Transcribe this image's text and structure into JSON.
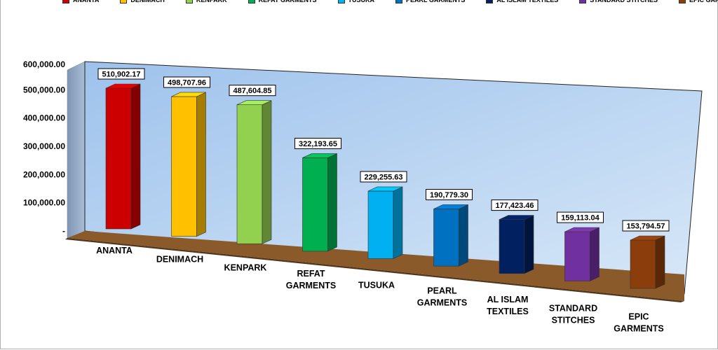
{
  "chart_data": {
    "type": "bar",
    "style": "3d-column",
    "categories": [
      "ANANTA",
      "DENIMACH",
      "KENPARK",
      "REFAT GARMENTS",
      "TUSUKA",
      "PEARL GARMENTS",
      "AL ISLAM TEXTILES",
      "STANDARD STITCHES",
      "EPIC GARMENTS"
    ],
    "values": [
      510902.17,
      498707.96,
      487604.85,
      322193.65,
      229255.63,
      190779.3,
      177423.46,
      159113.04,
      153794.57
    ],
    "value_labels": [
      "510,902.17",
      "498,707.96",
      "487,604.85",
      "322,193.65",
      "229,255.63",
      "190,779.30",
      "177,423.46",
      "159,113.04",
      "153,794.57"
    ],
    "colors": [
      "#cc0000",
      "#ffc000",
      "#92d050",
      "#00b050",
      "#00b0f0",
      "#0070c0",
      "#002060",
      "#7030a0",
      "#8b3d0b"
    ],
    "y_ticks": [
      "-",
      "100,000.00",
      "200,000.00",
      "300,000.00",
      "400,000.00",
      "500,000.00",
      "600,000.00"
    ],
    "ylim": [
      0,
      600000
    ],
    "legend": {
      "position": "top",
      "entries": [
        "ANANTA",
        "DENIMACH",
        "KENPARK",
        "REFAT GARMENTS",
        "TUSUKA",
        "PEARL GARMENTS",
        "AL ISLAM TEXTILES",
        "STANDARD STITCHES",
        "EPIC GARMENTS"
      ]
    },
    "grid": false,
    "wall_color": "#b8d4f0",
    "floor_color": "#8b5a2b"
  }
}
